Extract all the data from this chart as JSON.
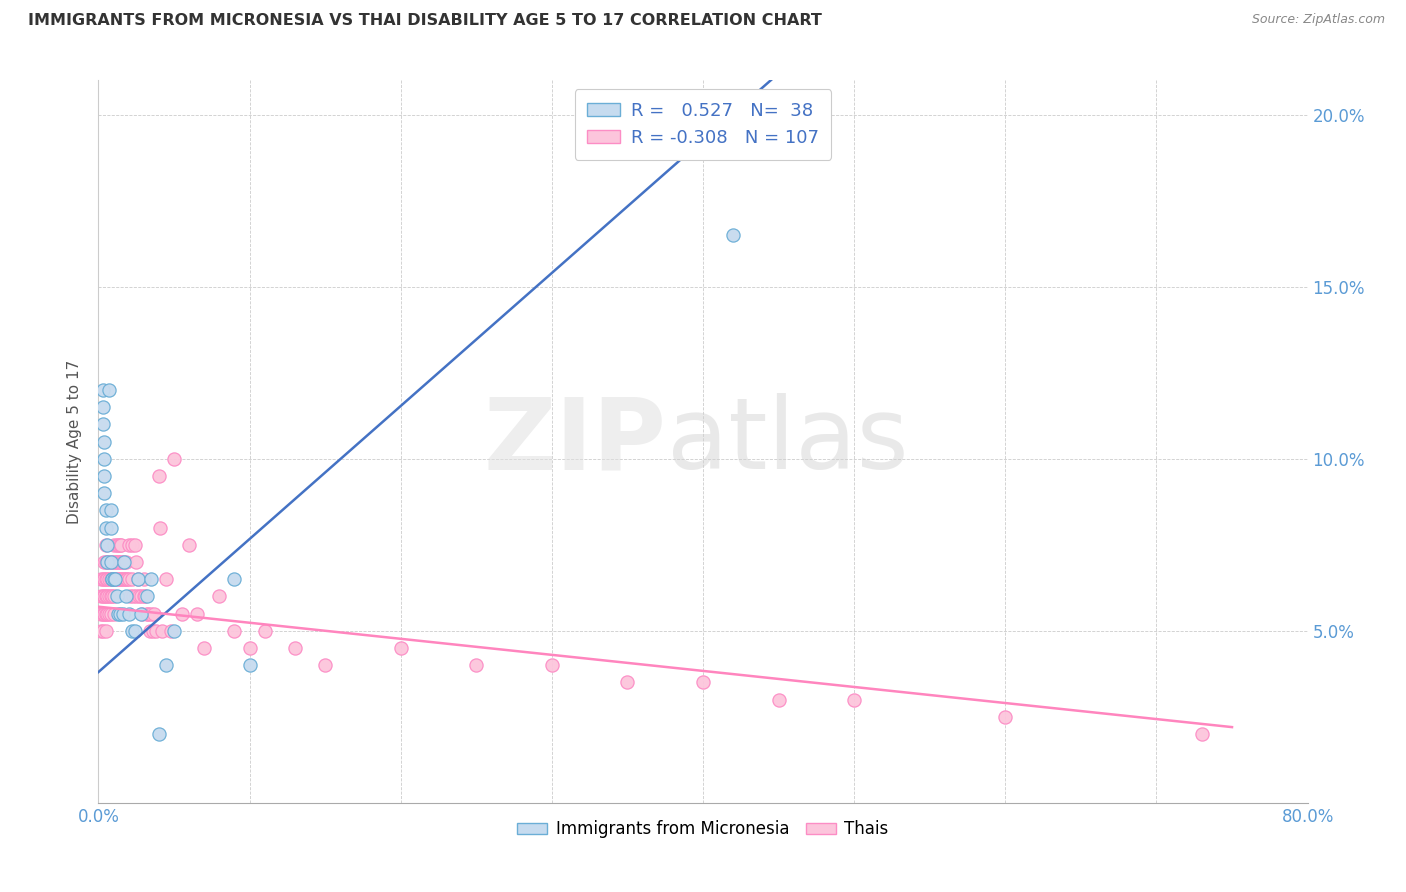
{
  "title": "IMMIGRANTS FROM MICRONESIA VS THAI DISABILITY AGE 5 TO 17 CORRELATION CHART",
  "source": "Source: ZipAtlas.com",
  "ylabel": "Disability Age 5 to 17",
  "xlim": [
    0.0,
    0.8
  ],
  "ylim": [
    0.0,
    0.21
  ],
  "micronesia_color": "#6baed6",
  "micronesia_color_fill": "#c6dbef",
  "thai_color": "#fc8dc5",
  "thai_color_fill": "#fcc5dc",
  "R_micro": 0.527,
  "N_micro": 38,
  "R_thai": -0.308,
  "N_thai": 107,
  "micronesia_x": [
    0.003,
    0.003,
    0.003,
    0.004,
    0.004,
    0.004,
    0.004,
    0.005,
    0.005,
    0.006,
    0.006,
    0.007,
    0.008,
    0.008,
    0.008,
    0.009,
    0.009,
    0.01,
    0.011,
    0.012,
    0.013,
    0.014,
    0.016,
    0.017,
    0.018,
    0.02,
    0.022,
    0.024,
    0.026,
    0.028,
    0.032,
    0.035,
    0.04,
    0.045,
    0.05,
    0.09,
    0.1,
    0.42
  ],
  "micronesia_y": [
    0.12,
    0.115,
    0.11,
    0.105,
    0.1,
    0.095,
    0.09,
    0.085,
    0.08,
    0.075,
    0.07,
    0.12,
    0.085,
    0.08,
    0.07,
    0.065,
    0.065,
    0.065,
    0.065,
    0.06,
    0.055,
    0.055,
    0.055,
    0.07,
    0.06,
    0.055,
    0.05,
    0.05,
    0.065,
    0.055,
    0.06,
    0.065,
    0.02,
    0.04,
    0.05,
    0.065,
    0.04,
    0.165
  ],
  "thai_x": [
    0.002,
    0.002,
    0.002,
    0.002,
    0.003,
    0.003,
    0.003,
    0.003,
    0.004,
    0.004,
    0.004,
    0.004,
    0.005,
    0.005,
    0.005,
    0.005,
    0.005,
    0.005,
    0.006,
    0.006,
    0.006,
    0.006,
    0.007,
    0.007,
    0.007,
    0.007,
    0.008,
    0.008,
    0.008,
    0.008,
    0.009,
    0.009,
    0.009,
    0.01,
    0.01,
    0.01,
    0.01,
    0.01,
    0.011,
    0.011,
    0.012,
    0.012,
    0.012,
    0.013,
    0.013,
    0.013,
    0.014,
    0.014,
    0.014,
    0.015,
    0.015,
    0.015,
    0.016,
    0.016,
    0.017,
    0.017,
    0.018,
    0.018,
    0.019,
    0.02,
    0.02,
    0.021,
    0.022,
    0.022,
    0.023,
    0.024,
    0.025,
    0.025,
    0.026,
    0.027,
    0.028,
    0.029,
    0.03,
    0.03,
    0.031,
    0.032,
    0.033,
    0.034,
    0.035,
    0.036,
    0.037,
    0.038,
    0.04,
    0.041,
    0.042,
    0.045,
    0.048,
    0.05,
    0.055,
    0.06,
    0.065,
    0.07,
    0.08,
    0.09,
    0.1,
    0.11,
    0.13,
    0.15,
    0.2,
    0.25,
    0.3,
    0.35,
    0.4,
    0.45,
    0.5,
    0.6,
    0.73
  ],
  "thai_y": [
    0.065,
    0.06,
    0.055,
    0.05,
    0.065,
    0.06,
    0.055,
    0.05,
    0.07,
    0.065,
    0.06,
    0.055,
    0.075,
    0.07,
    0.065,
    0.06,
    0.055,
    0.05,
    0.07,
    0.065,
    0.06,
    0.055,
    0.07,
    0.065,
    0.06,
    0.055,
    0.07,
    0.065,
    0.06,
    0.055,
    0.07,
    0.065,
    0.06,
    0.075,
    0.07,
    0.065,
    0.06,
    0.055,
    0.07,
    0.065,
    0.075,
    0.07,
    0.065,
    0.075,
    0.07,
    0.065,
    0.075,
    0.07,
    0.065,
    0.075,
    0.07,
    0.065,
    0.07,
    0.065,
    0.07,
    0.065,
    0.07,
    0.065,
    0.065,
    0.075,
    0.065,
    0.06,
    0.075,
    0.065,
    0.06,
    0.075,
    0.07,
    0.06,
    0.065,
    0.06,
    0.06,
    0.055,
    0.065,
    0.06,
    0.06,
    0.055,
    0.055,
    0.05,
    0.055,
    0.05,
    0.055,
    0.05,
    0.095,
    0.08,
    0.05,
    0.065,
    0.05,
    0.1,
    0.055,
    0.075,
    0.055,
    0.045,
    0.06,
    0.05,
    0.045,
    0.05,
    0.045,
    0.04,
    0.045,
    0.04,
    0.04,
    0.035,
    0.035,
    0.03,
    0.03,
    0.025,
    0.02
  ],
  "micro_trendline_x": [
    0.0,
    0.45
  ],
  "micro_trendline_y": [
    0.038,
    0.212
  ],
  "thai_trendline_x": [
    0.0,
    0.75
  ],
  "thai_trendline_y": [
    0.057,
    0.022
  ]
}
